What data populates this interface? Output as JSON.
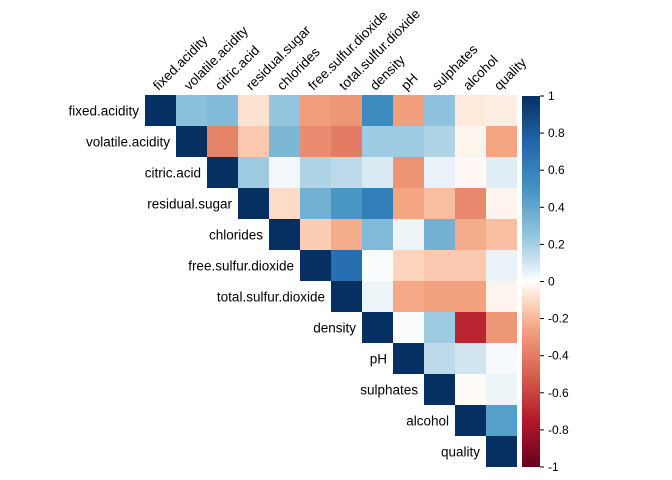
{
  "chart_data": {
    "type": "heatmap",
    "style": "upper-triangle correlation matrix",
    "variables": [
      "fixed.acidity",
      "volatile.acidity",
      "citric.acid",
      "residual.sugar",
      "chlorides",
      "free.sulfur.dioxide",
      "total.sulfur.dioxide",
      "density",
      "pH",
      "sulphates",
      "alcohol",
      "quality"
    ],
    "matrix": [
      [
        1.0,
        0.27,
        0.3,
        -0.08,
        0.25,
        -0.28,
        -0.3,
        0.55,
        -0.27,
        0.26,
        -0.06,
        -0.05
      ],
      [
        null,
        1.0,
        -0.37,
        -0.15,
        0.32,
        -0.34,
        -0.4,
        0.22,
        0.22,
        0.18,
        -0.03,
        -0.25
      ],
      [
        null,
        null,
        1.0,
        0.22,
        0.03,
        0.18,
        0.15,
        0.08,
        -0.31,
        0.05,
        -0.02,
        0.07
      ],
      [
        null,
        null,
        null,
        1.0,
        -0.1,
        0.35,
        0.48,
        0.62,
        -0.25,
        -0.18,
        -0.35,
        -0.03
      ],
      [
        null,
        null,
        null,
        null,
        1.0,
        -0.14,
        -0.23,
        0.3,
        0.04,
        0.35,
        -0.23,
        -0.18
      ],
      [
        null,
        null,
        null,
        null,
        null,
        1.0,
        0.7,
        0.01,
        -0.12,
        -0.15,
        -0.15,
        0.05
      ],
      [
        null,
        null,
        null,
        null,
        null,
        null,
        1.0,
        0.04,
        -0.24,
        -0.26,
        -0.26,
        -0.03
      ],
      [
        null,
        null,
        null,
        null,
        null,
        null,
        null,
        1.0,
        0.01,
        0.22,
        -0.7,
        -0.3
      ],
      [
        null,
        null,
        null,
        null,
        null,
        null,
        null,
        null,
        1.0,
        0.15,
        0.1,
        0.02
      ],
      [
        null,
        null,
        null,
        null,
        null,
        null,
        null,
        null,
        null,
        1.0,
        -0.01,
        0.04
      ],
      [
        null,
        null,
        null,
        null,
        null,
        null,
        null,
        null,
        null,
        null,
        1.0,
        0.44
      ],
      [
        null,
        null,
        null,
        null,
        null,
        null,
        null,
        null,
        null,
        null,
        null,
        1.0
      ]
    ],
    "color_scale": {
      "range": [
        -1,
        1
      ],
      "ticks": [
        "1",
        "0.8",
        "0.6",
        "0.4",
        "0.2",
        "0",
        "-0.2",
        "-0.4",
        "-0.6",
        "-0.8",
        "-1"
      ],
      "stops": [
        {
          "v": -1.0,
          "color": "#67001F"
        },
        {
          "v": -0.75,
          "color": "#B2182B"
        },
        {
          "v": -0.5,
          "color": "#D6604D"
        },
        {
          "v": -0.25,
          "color": "#F4A582"
        },
        {
          "v": -0.1,
          "color": "#FDDBC7"
        },
        {
          "v": 0.0,
          "color": "#FFFFFF"
        },
        {
          "v": 0.1,
          "color": "#D1E5F0"
        },
        {
          "v": 0.25,
          "color": "#92C5DE"
        },
        {
          "v": 0.5,
          "color": "#4393C3"
        },
        {
          "v": 0.75,
          "color": "#2166AC"
        },
        {
          "v": 1.0,
          "color": "#053061"
        }
      ]
    },
    "grid": false,
    "legend_position": "right"
  }
}
